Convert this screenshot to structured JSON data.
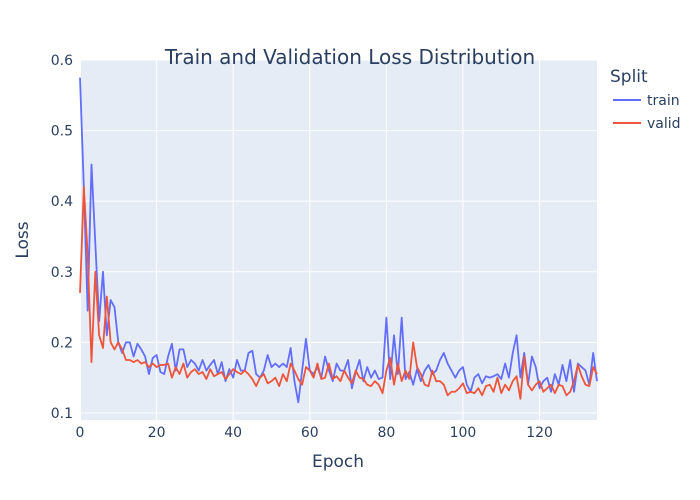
{
  "chart_data": {
    "type": "line",
    "title": "Train and Validation Loss Distribution",
    "xlabel": "Epoch",
    "ylabel": "Loss",
    "xlim": [
      0,
      135
    ],
    "ylim": [
      0.09,
      0.6
    ],
    "x_ticks": [
      "0",
      "20",
      "40",
      "60",
      "80",
      "100",
      "120"
    ],
    "y_ticks": [
      "0.1",
      "0.2",
      "0.3",
      "0.4",
      "0.5",
      "0.6"
    ],
    "grid": true,
    "legend": {
      "title": "Split",
      "position": "top-right"
    },
    "series": [
      {
        "name": "train",
        "color": "#636efa",
        "values": [
          0.575,
          0.42,
          0.245,
          0.452,
          0.34,
          0.23,
          0.3,
          0.21,
          0.26,
          0.25,
          0.2,
          0.185,
          0.2,
          0.2,
          0.18,
          0.198,
          0.19,
          0.18,
          0.155,
          0.178,
          0.182,
          0.158,
          0.155,
          0.18,
          0.198,
          0.16,
          0.19,
          0.19,
          0.165,
          0.175,
          0.17,
          0.16,
          0.175,
          0.16,
          0.168,
          0.175,
          0.155,
          0.172,
          0.145,
          0.162,
          0.15,
          0.175,
          0.16,
          0.16,
          0.185,
          0.188,
          0.155,
          0.15,
          0.16,
          0.182,
          0.165,
          0.17,
          0.165,
          0.17,
          0.165,
          0.192,
          0.145,
          0.115,
          0.16,
          0.205,
          0.16,
          0.155,
          0.165,
          0.15,
          0.18,
          0.16,
          0.145,
          0.17,
          0.16,
          0.16,
          0.175,
          0.135,
          0.158,
          0.175,
          0.145,
          0.165,
          0.15,
          0.16,
          0.148,
          0.15,
          0.235,
          0.148,
          0.21,
          0.155,
          0.235,
          0.148,
          0.158,
          0.14,
          0.162,
          0.145,
          0.16,
          0.168,
          0.155,
          0.16,
          0.175,
          0.185,
          0.17,
          0.16,
          0.15,
          0.16,
          0.165,
          0.14,
          0.13,
          0.15,
          0.155,
          0.142,
          0.152,
          0.15,
          0.152,
          0.155,
          0.148,
          0.17,
          0.15,
          0.185,
          0.21,
          0.15,
          0.185,
          0.14,
          0.18,
          0.165,
          0.135,
          0.145,
          0.15,
          0.13,
          0.155,
          0.14,
          0.168,
          0.145,
          0.175,
          0.13,
          0.17,
          0.165,
          0.16,
          0.14,
          0.185,
          0.145
        ]
      },
      {
        "name": "valid",
        "color": "#ef553b",
        "values": [
          0.27,
          0.42,
          0.325,
          0.172,
          0.3,
          0.21,
          0.192,
          0.265,
          0.2,
          0.19,
          0.2,
          0.19,
          0.175,
          0.175,
          0.172,
          0.175,
          0.17,
          0.172,
          0.165,
          0.17,
          0.165,
          0.168,
          0.168,
          0.17,
          0.15,
          0.165,
          0.155,
          0.17,
          0.15,
          0.158,
          0.162,
          0.155,
          0.158,
          0.148,
          0.162,
          0.152,
          0.155,
          0.158,
          0.148,
          0.155,
          0.162,
          0.158,
          0.155,
          0.16,
          0.155,
          0.148,
          0.138,
          0.15,
          0.155,
          0.142,
          0.145,
          0.15,
          0.138,
          0.155,
          0.145,
          0.17,
          0.16,
          0.148,
          0.14,
          0.165,
          0.16,
          0.15,
          0.17,
          0.148,
          0.15,
          0.17,
          0.148,
          0.152,
          0.145,
          0.16,
          0.15,
          0.142,
          0.16,
          0.15,
          0.148,
          0.14,
          0.138,
          0.145,
          0.14,
          0.128,
          0.16,
          0.178,
          0.14,
          0.17,
          0.145,
          0.16,
          0.148,
          0.2,
          0.165,
          0.155,
          0.14,
          0.138,
          0.16,
          0.145,
          0.145,
          0.14,
          0.125,
          0.13,
          0.13,
          0.135,
          0.142,
          0.128,
          0.13,
          0.128,
          0.135,
          0.125,
          0.138,
          0.14,
          0.13,
          0.15,
          0.128,
          0.14,
          0.132,
          0.145,
          0.152,
          0.12,
          0.18,
          0.14,
          0.132,
          0.14,
          0.145,
          0.13,
          0.135,
          0.14,
          0.128,
          0.14,
          0.138,
          0.125,
          0.13,
          0.145,
          0.168,
          0.152,
          0.14,
          0.138,
          0.165,
          0.155
        ]
      }
    ]
  }
}
